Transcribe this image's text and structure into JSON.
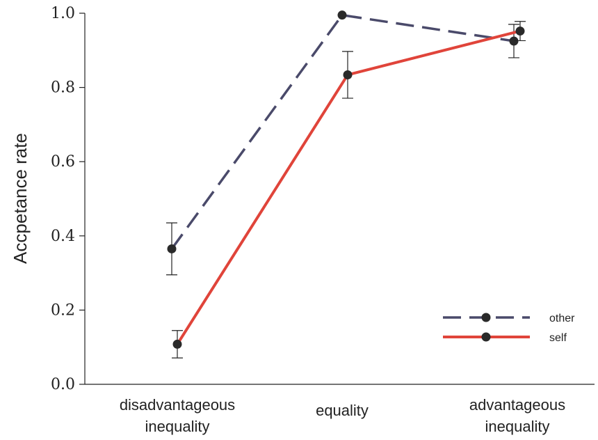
{
  "chart_data": {
    "type": "line",
    "title": "",
    "xlabel": "",
    "ylabel": "Accpetance rate",
    "ylim": [
      0,
      1
    ],
    "yticks": [
      "0.0",
      "0.2",
      "0.4",
      "0.6",
      "0.8",
      "1.0"
    ],
    "categories": [
      [
        "disadvantageous",
        "inequality"
      ],
      [
        "equality"
      ],
      [
        "advantageous",
        "inequality"
      ]
    ],
    "grid": false,
    "legend_position": "lower-right",
    "series": [
      {
        "name": "other",
        "style": "dashed",
        "color": "#4a4a6a",
        "values": [
          0.365,
          0.995,
          0.925
        ],
        "errors": [
          0.07,
          0.0,
          0.045
        ]
      },
      {
        "name": "self",
        "style": "solid",
        "color": "#e0443a",
        "values": [
          0.108,
          0.834,
          0.952
        ],
        "errors": [
          0.037,
          0.063,
          0.026
        ]
      }
    ]
  }
}
